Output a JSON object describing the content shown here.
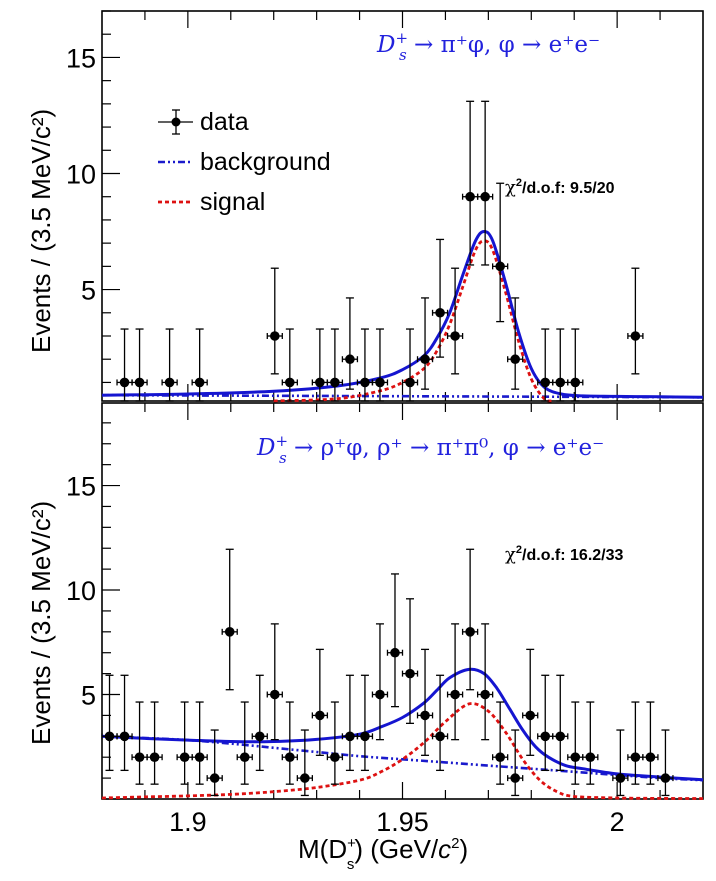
{
  "chart_data": [
    {
      "type": "scatter",
      "panel": "top",
      "title": "D_s^+ → π^+ φ, φ → e^+ e^-",
      "title_parts": {
        "base": "D",
        "sub": "s",
        "sup": "+",
        "rest": " → π⁺φ, φ → e⁺e⁻"
      },
      "chi2_label": "/d.o.f: 9.5/20",
      "chi2_symbol": "χ",
      "chi2_sup": "2",
      "xlabel": "",
      "ylabel": "Events / (3.5 MeV/c²)",
      "xlim": [
        1.88,
        2.02
      ],
      "ylim": [
        0.2,
        17.0
      ],
      "yticks": [
        5,
        10,
        15
      ],
      "ytick_labels": [
        "5",
        "10",
        "15"
      ],
      "bin_width": 0.0035,
      "legend": {
        "placement": "top-left",
        "entries": [
          {
            "label": "data",
            "style": "points-with-errors"
          },
          {
            "label": "background",
            "style": "dash-dot-dot",
            "color": "#1a1acc"
          },
          {
            "label": "signal",
            "style": "dashed",
            "color": "#dd1111"
          }
        ]
      },
      "data_points": {
        "bin_index": [
          1,
          2,
          4,
          6,
          11,
          12,
          14,
          15,
          16,
          17,
          18,
          20,
          21,
          22,
          23,
          24,
          25,
          26,
          27,
          29,
          30,
          31,
          35
        ],
        "counts": [
          1,
          1,
          1,
          1,
          3,
          1,
          1,
          1,
          2,
          1,
          1,
          1,
          2,
          4,
          3,
          9,
          9,
          6,
          2,
          1,
          1,
          1,
          3
        ]
      },
      "series": [
        {
          "name": "total fit",
          "color": "#1515d0",
          "x": [
            1.88,
            1.9,
            1.92,
            1.935,
            1.945,
            1.95,
            1.955,
            1.958,
            1.961,
            1.964,
            1.967,
            1.969,
            1.971,
            1.974,
            1.977,
            1.98,
            1.983,
            1.987,
            1.992,
            2.0,
            2.01,
            2.02
          ],
          "y": [
            0.45,
            0.5,
            0.62,
            0.85,
            1.2,
            1.55,
            2.15,
            2.9,
            4.0,
            5.6,
            7.1,
            7.5,
            7.1,
            5.3,
            3.2,
            1.6,
            0.8,
            0.5,
            0.42,
            0.4,
            0.38,
            0.36
          ]
        },
        {
          "name": "background",
          "color": "#1a1acc",
          "x": [
            1.88,
            2.02
          ],
          "y": [
            0.45,
            0.36
          ]
        },
        {
          "name": "signal",
          "color": "#dd1111",
          "x": [
            1.92,
            1.935,
            1.945,
            1.95,
            1.955,
            1.958,
            1.961,
            1.964,
            1.967,
            1.969,
            1.971,
            1.974,
            1.977,
            1.98,
            1.983,
            1.985
          ],
          "y": [
            0.05,
            0.3,
            0.65,
            1.0,
            1.6,
            2.35,
            3.5,
            5.1,
            6.7,
            7.1,
            6.7,
            4.9,
            2.8,
            1.15,
            0.3,
            0.05
          ]
        }
      ]
    },
    {
      "type": "scatter",
      "panel": "bottom",
      "title": "D_s^+ → ρ^+ φ, ρ^+ → π^+ π^0, φ → e^+ e^-",
      "title_parts": {
        "base": "D",
        "sub": "s",
        "sup": "+",
        "rest": " → ρ⁺φ, ρ⁺ → π⁺π⁰, φ → e⁺e⁻"
      },
      "chi2_label": "/d.o.f: 16.2/33",
      "chi2_symbol": "χ",
      "chi2_sup": "2",
      "xlabel": "M(D_s^+) (GeV/c²)",
      "xlabel_parts": {
        "pre": "M(D",
        "sub": "s",
        "sup": "+",
        "post": ") (GeV/",
        "c": "c",
        "c_sup": "2",
        "close": ")"
      },
      "ylabel": "Events / (3.5 MeV/c²)",
      "xlim": [
        1.88,
        2.02
      ],
      "ylim": [
        0,
        18.95
      ],
      "xticks": [
        1.9,
        1.95,
        2.0
      ],
      "xtick_labels": [
        "1.9",
        "1.95",
        "2"
      ],
      "yticks": [
        5,
        10,
        15
      ],
      "ytick_labels": [
        "5",
        "10",
        "15"
      ],
      "bin_width": 0.0035,
      "data_points": {
        "bin_index": [
          0,
          1,
          2,
          3,
          5,
          6,
          7,
          8,
          9,
          10,
          11,
          12,
          13,
          14,
          15,
          16,
          17,
          18,
          19,
          20,
          21,
          22,
          23,
          24,
          25,
          26,
          27,
          28,
          29,
          30,
          31,
          32,
          34,
          35,
          36,
          37
        ],
        "counts": [
          3,
          3,
          2,
          2,
          2,
          2,
          1,
          8,
          2,
          3,
          5,
          2,
          1,
          4,
          2,
          3,
          3,
          5,
          7,
          6,
          4,
          3,
          5,
          8,
          5,
          2,
          1,
          4,
          3,
          3,
          2,
          2,
          1,
          2,
          2,
          1
        ]
      },
      "series": [
        {
          "name": "total fit",
          "color": "#1515d0",
          "x": [
            1.88,
            1.89,
            1.9,
            1.91,
            1.92,
            1.93,
            1.94,
            1.945,
            1.95,
            1.955,
            1.958,
            1.961,
            1.9655,
            1.969,
            1.972,
            1.975,
            1.978,
            1.981,
            1.984,
            1.988,
            1.992,
            2.0,
            2.01,
            2.02
          ],
          "y": [
            3.0,
            2.9,
            2.82,
            2.75,
            2.75,
            2.85,
            3.1,
            3.45,
            3.9,
            4.6,
            5.2,
            5.8,
            6.2,
            6.0,
            5.3,
            4.3,
            3.3,
            2.5,
            2.0,
            1.6,
            1.45,
            1.2,
            1.05,
            0.92
          ]
        },
        {
          "name": "background",
          "color": "#1a1acc",
          "x": [
            1.88,
            1.89,
            1.9,
            1.91,
            1.92,
            1.93,
            1.94,
            1.95,
            1.96,
            1.97,
            1.98,
            1.99,
            2.0,
            2.01,
            2.02
          ],
          "y": [
            3.0,
            2.92,
            2.82,
            2.65,
            2.45,
            2.25,
            2.05,
            1.9,
            1.75,
            1.6,
            1.45,
            1.3,
            1.15,
            1.0,
            0.9
          ]
        },
        {
          "name": "signal",
          "color": "#dd1111",
          "x": [
            1.88,
            1.89,
            1.9,
            1.91,
            1.92,
            1.93,
            1.94,
            1.945,
            1.95,
            1.955,
            1.96,
            1.9655,
            1.97,
            1.974,
            1.978,
            1.982,
            1.986,
            1.99,
            2.0,
            2.01,
            2.02
          ],
          "y": [
            0.05,
            0.1,
            0.15,
            0.22,
            0.35,
            0.55,
            0.9,
            1.3,
            1.9,
            2.7,
            3.7,
            4.55,
            4.2,
            3.2,
            1.9,
            0.9,
            0.35,
            0.12,
            0.05,
            0.03,
            0.02
          ]
        }
      ]
    }
  ],
  "poisson_errors": {
    "counts": [
      1,
      2,
      3,
      4,
      5,
      6,
      7,
      8,
      9
    ],
    "low": [
      0.17,
      0.71,
      1.37,
      2.09,
      2.84,
      3.62,
      4.42,
      5.23,
      6.06
    ],
    "high": [
      3.3,
      4.64,
      5.92,
      7.16,
      8.38,
      9.58,
      10.77,
      11.95,
      13.11
    ]
  }
}
